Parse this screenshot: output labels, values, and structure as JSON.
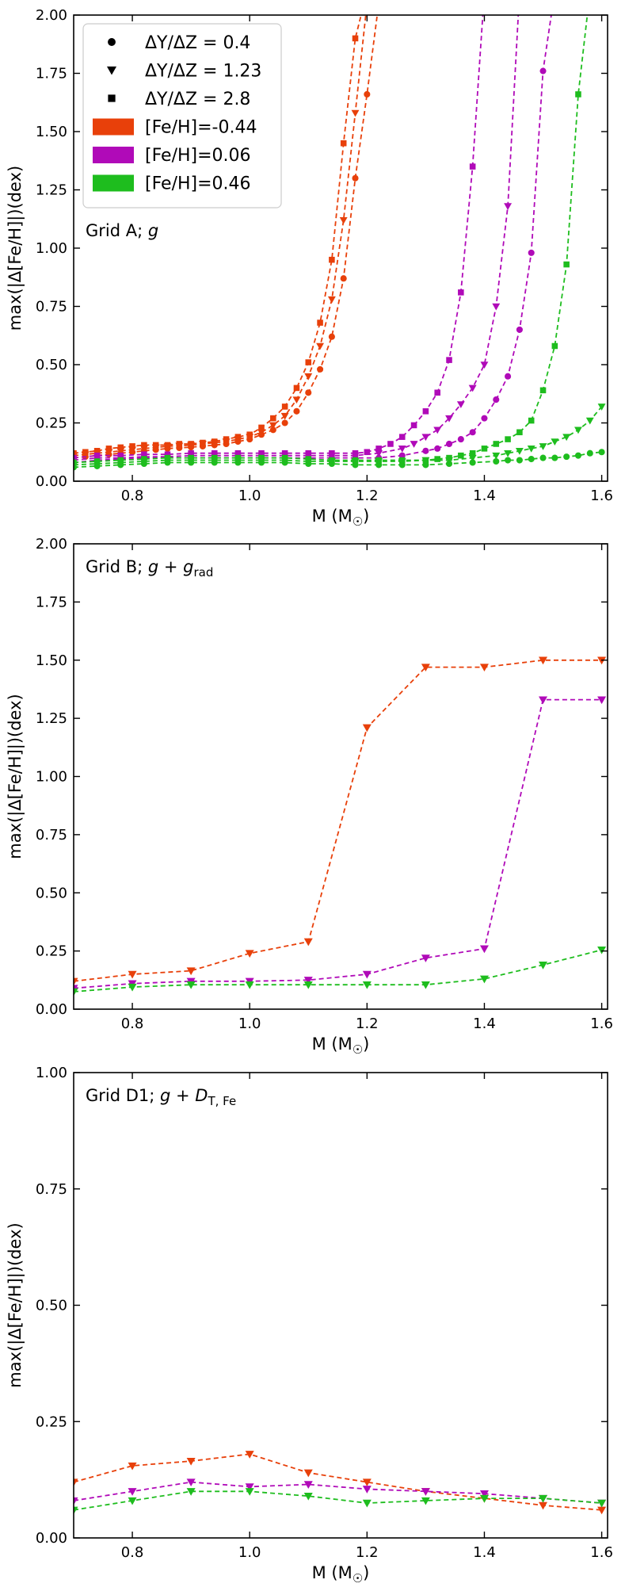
{
  "colors": {
    "metal_poor": "#e8400a",
    "solar": "#b00ab8",
    "metal_rich": "#1ebd1e",
    "axis": "#000000"
  },
  "chart_data": [
    {
      "type": "line",
      "title": "Grid A; g",
      "title_parts": {
        "prefix": "Grid A; ",
        "math": "g",
        "sub": ""
      },
      "xlabel": "M (M☉)",
      "xlabel_parts": {
        "main": "M (M",
        "sub": "☉",
        "close": ")"
      },
      "ylabel": "max(|Δ[Fe/H]|)(dex)",
      "xlim": [
        0.7,
        1.61
      ],
      "ylim": [
        0,
        2.0
      ],
      "xticks": [
        0.8,
        1.0,
        1.2,
        1.4,
        1.6
      ],
      "xtick_labels": [
        "0.8",
        "1.0",
        "1.2",
        "1.4",
        "1.6"
      ],
      "yticks": [
        0,
        0.25,
        0.5,
        0.75,
        1.0,
        1.25,
        1.5,
        1.75,
        2.0
      ],
      "ytick_labels": [
        "0.00",
        "0.25",
        "0.50",
        "0.75",
        "1.00",
        "1.25",
        "1.50",
        "1.75",
        "2.00"
      ],
      "legend": {
        "position": "top-left",
        "markers": [
          {
            "marker": "circle",
            "label": "ΔY/ΔZ = 0.4"
          },
          {
            "marker": "triangle-down",
            "label": "ΔY/ΔZ = 1.23"
          },
          {
            "marker": "square",
            "label": "ΔY/ΔZ = 2.8"
          }
        ],
        "colors": [
          {
            "color_key": "metal_poor",
            "label": "[Fe/H]=-0.44"
          },
          {
            "color_key": "solar",
            "label": "[Fe/H]=0.06"
          },
          {
            "color_key": "metal_rich",
            "label": "[Fe/H]=0.46"
          }
        ]
      },
      "series": [
        {
          "name": "[Fe/H]=-0.44, ΔY/ΔZ=0.4",
          "color_key": "metal_poor",
          "marker": "circle",
          "x": [
            0.7,
            0.72,
            0.74,
            0.76,
            0.78,
            0.8,
            0.82,
            0.84,
            0.86,
            0.88,
            0.9,
            0.92,
            0.94,
            0.96,
            0.98,
            1.0,
            1.02,
            1.04,
            1.06,
            1.08,
            1.1,
            1.12,
            1.14,
            1.16,
            1.18,
            1.2,
            1.22
          ],
          "values": [
            0.1,
            0.105,
            0.11,
            0.115,
            0.12,
            0.125,
            0.13,
            0.135,
            0.14,
            0.143,
            0.146,
            0.15,
            0.155,
            0.16,
            0.17,
            0.18,
            0.2,
            0.22,
            0.25,
            0.3,
            0.38,
            0.48,
            0.62,
            0.87,
            1.3,
            1.66,
            2.05
          ]
        },
        {
          "name": "[Fe/H]=-0.44, ΔY/ΔZ=1.23",
          "color_key": "metal_poor",
          "marker": "triangle-down",
          "x": [
            0.7,
            0.72,
            0.74,
            0.76,
            0.78,
            0.8,
            0.82,
            0.84,
            0.86,
            0.88,
            0.9,
            0.92,
            0.94,
            0.96,
            0.98,
            1.0,
            1.02,
            1.04,
            1.06,
            1.08,
            1.1,
            1.12,
            1.14,
            1.16,
            1.18,
            1.2
          ],
          "values": [
            0.11,
            0.115,
            0.12,
            0.125,
            0.13,
            0.135,
            0.14,
            0.145,
            0.15,
            0.152,
            0.155,
            0.16,
            0.165,
            0.17,
            0.18,
            0.19,
            0.21,
            0.24,
            0.28,
            0.35,
            0.45,
            0.58,
            0.78,
            1.12,
            1.58,
            2.05
          ]
        },
        {
          "name": "[Fe/H]=-0.44, ΔY/ΔZ=2.8",
          "color_key": "metal_poor",
          "marker": "square",
          "x": [
            0.7,
            0.72,
            0.74,
            0.76,
            0.78,
            0.8,
            0.82,
            0.84,
            0.86,
            0.88,
            0.9,
            0.92,
            0.94,
            0.96,
            0.98,
            1.0,
            1.02,
            1.04,
            1.06,
            1.08,
            1.1,
            1.12,
            1.14,
            1.16,
            1.18,
            1.2
          ],
          "values": [
            0.12,
            0.125,
            0.13,
            0.14,
            0.145,
            0.15,
            0.155,
            0.155,
            0.155,
            0.16,
            0.16,
            0.165,
            0.17,
            0.18,
            0.19,
            0.2,
            0.23,
            0.27,
            0.32,
            0.4,
            0.51,
            0.68,
            0.95,
            1.45,
            1.9,
            2.1
          ]
        },
        {
          "name": "[Fe/H]=0.06, ΔY/ΔZ=0.4",
          "color_key": "solar",
          "marker": "circle",
          "x": [
            0.7,
            0.74,
            0.78,
            0.82,
            0.86,
            0.9,
            0.94,
            0.98,
            1.02,
            1.06,
            1.1,
            1.14,
            1.18,
            1.22,
            1.26,
            1.3,
            1.32,
            1.34,
            1.36,
            1.38,
            1.4,
            1.42,
            1.44,
            1.46,
            1.48,
            1.5,
            1.52
          ],
          "values": [
            0.08,
            0.09,
            0.095,
            0.1,
            0.1,
            0.1,
            0.1,
            0.1,
            0.1,
            0.1,
            0.1,
            0.1,
            0.1,
            0.1,
            0.11,
            0.13,
            0.14,
            0.16,
            0.18,
            0.21,
            0.27,
            0.35,
            0.45,
            0.65,
            0.98,
            1.76,
            2.1
          ]
        },
        {
          "name": "[Fe/H]=0.06, ΔY/ΔZ=1.23",
          "color_key": "solar",
          "marker": "triangle-down",
          "x": [
            0.7,
            0.74,
            0.78,
            0.82,
            0.86,
            0.9,
            0.94,
            0.98,
            1.02,
            1.06,
            1.1,
            1.14,
            1.18,
            1.22,
            1.26,
            1.28,
            1.3,
            1.32,
            1.34,
            1.36,
            1.38,
            1.4,
            1.42,
            1.44,
            1.46
          ],
          "values": [
            0.09,
            0.1,
            0.1,
            0.105,
            0.105,
            0.11,
            0.11,
            0.11,
            0.11,
            0.11,
            0.11,
            0.11,
            0.11,
            0.12,
            0.14,
            0.16,
            0.19,
            0.22,
            0.27,
            0.33,
            0.4,
            0.5,
            0.75,
            1.18,
            2.1
          ]
        },
        {
          "name": "[Fe/H]=0.06, ΔY/ΔZ=2.8",
          "color_key": "solar",
          "marker": "square",
          "x": [
            0.7,
            0.74,
            0.78,
            0.82,
            0.86,
            0.9,
            0.94,
            0.98,
            1.02,
            1.06,
            1.1,
            1.14,
            1.18,
            1.2,
            1.22,
            1.24,
            1.26,
            1.28,
            1.3,
            1.32,
            1.34,
            1.36,
            1.38,
            1.4,
            1.42
          ],
          "values": [
            0.1,
            0.11,
            0.11,
            0.115,
            0.115,
            0.12,
            0.12,
            0.12,
            0.12,
            0.12,
            0.12,
            0.12,
            0.12,
            0.125,
            0.14,
            0.16,
            0.19,
            0.24,
            0.3,
            0.38,
            0.52,
            0.81,
            1.35,
            2.1,
            2.1
          ]
        },
        {
          "name": "[Fe/H]=0.46, ΔY/ΔZ=0.4",
          "color_key": "metal_rich",
          "marker": "circle",
          "x": [
            0.7,
            0.74,
            0.78,
            0.82,
            0.86,
            0.9,
            0.94,
            0.98,
            1.02,
            1.06,
            1.1,
            1.14,
            1.18,
            1.22,
            1.26,
            1.3,
            1.34,
            1.38,
            1.42,
            1.44,
            1.46,
            1.48,
            1.5,
            1.52,
            1.54,
            1.56,
            1.58,
            1.6
          ],
          "values": [
            0.06,
            0.065,
            0.07,
            0.075,
            0.08,
            0.08,
            0.08,
            0.08,
            0.08,
            0.08,
            0.075,
            0.075,
            0.07,
            0.07,
            0.07,
            0.07,
            0.075,
            0.08,
            0.085,
            0.09,
            0.09,
            0.095,
            0.1,
            0.1,
            0.105,
            0.11,
            0.12,
            0.125
          ]
        },
        {
          "name": "[Fe/H]=0.46, ΔY/ΔZ=1.23",
          "color_key": "metal_rich",
          "marker": "triangle-down",
          "x": [
            0.7,
            0.74,
            0.78,
            0.82,
            0.86,
            0.9,
            0.94,
            0.98,
            1.02,
            1.06,
            1.1,
            1.14,
            1.18,
            1.22,
            1.26,
            1.3,
            1.34,
            1.38,
            1.42,
            1.44,
            1.46,
            1.48,
            1.5,
            1.52,
            1.54,
            1.56,
            1.58,
            1.6
          ],
          "values": [
            0.07,
            0.075,
            0.08,
            0.085,
            0.09,
            0.09,
            0.09,
            0.09,
            0.09,
            0.09,
            0.085,
            0.085,
            0.085,
            0.085,
            0.085,
            0.09,
            0.09,
            0.1,
            0.11,
            0.12,
            0.13,
            0.14,
            0.15,
            0.17,
            0.19,
            0.22,
            0.26,
            0.32
          ]
        },
        {
          "name": "[Fe/H]=0.46, ΔY/ΔZ=2.8",
          "color_key": "metal_rich",
          "marker": "square",
          "x": [
            0.7,
            0.74,
            0.78,
            0.82,
            0.86,
            0.9,
            0.94,
            0.98,
            1.02,
            1.06,
            1.1,
            1.14,
            1.18,
            1.22,
            1.26,
            1.3,
            1.32,
            1.34,
            1.36,
            1.38,
            1.4,
            1.42,
            1.44,
            1.46,
            1.48,
            1.5,
            1.52,
            1.54,
            1.56,
            1.58
          ],
          "values": [
            0.08,
            0.085,
            0.09,
            0.095,
            0.1,
            0.1,
            0.1,
            0.1,
            0.1,
            0.1,
            0.095,
            0.09,
            0.09,
            0.09,
            0.09,
            0.09,
            0.095,
            0.1,
            0.11,
            0.12,
            0.14,
            0.16,
            0.18,
            0.21,
            0.26,
            0.39,
            0.58,
            0.93,
            1.66,
            2.1
          ]
        }
      ]
    },
    {
      "type": "line",
      "title": "Grid B; g + g_rad",
      "title_parts": {
        "prefix": "Grid B; ",
        "math": "g + g",
        "sub": "rad"
      },
      "xlabel": "M (M☉)",
      "xlabel_parts": {
        "main": "M (M",
        "sub": "☉",
        "close": ")"
      },
      "ylabel": "max(|Δ[Fe/H]|)(dex)",
      "xlim": [
        0.7,
        1.61
      ],
      "ylim": [
        0,
        2.0
      ],
      "xticks": [
        0.8,
        1.0,
        1.2,
        1.4,
        1.6
      ],
      "xtick_labels": [
        "0.8",
        "1.0",
        "1.2",
        "1.4",
        "1.6"
      ],
      "yticks": [
        0,
        0.25,
        0.5,
        0.75,
        1.0,
        1.25,
        1.5,
        1.75,
        2.0
      ],
      "ytick_labels": [
        "0.00",
        "0.25",
        "0.50",
        "0.75",
        "1.00",
        "1.25",
        "1.50",
        "1.75",
        "2.00"
      ],
      "series": [
        {
          "name": "[Fe/H]=-0.44",
          "color_key": "metal_poor",
          "marker": "triangle-down",
          "x": [
            0.7,
            0.8,
            0.9,
            1.0,
            1.1,
            1.2,
            1.3,
            1.4,
            1.5,
            1.6
          ],
          "values": [
            0.12,
            0.15,
            0.165,
            0.24,
            0.29,
            1.21,
            1.47,
            1.47,
            1.5,
            1.5
          ]
        },
        {
          "name": "[Fe/H]=0.06",
          "color_key": "solar",
          "marker": "triangle-down",
          "x": [
            0.7,
            0.8,
            0.9,
            1.0,
            1.1,
            1.2,
            1.3,
            1.4,
            1.5,
            1.6
          ],
          "values": [
            0.09,
            0.11,
            0.12,
            0.12,
            0.125,
            0.15,
            0.22,
            0.26,
            1.33,
            1.33
          ]
        },
        {
          "name": "[Fe/H]=0.46",
          "color_key": "metal_rich",
          "marker": "triangle-down",
          "x": [
            0.7,
            0.8,
            0.9,
            1.0,
            1.1,
            1.2,
            1.3,
            1.4,
            1.5,
            1.6
          ],
          "values": [
            0.075,
            0.095,
            0.105,
            0.105,
            0.105,
            0.105,
            0.105,
            0.13,
            0.19,
            0.255
          ]
        }
      ]
    },
    {
      "type": "line",
      "title": "Grid D1; g + D_T,Fe",
      "title_parts": {
        "prefix": "Grid D1; ",
        "math": "g + D",
        "sub": "T, Fe"
      },
      "xlabel": "M (M☉)",
      "xlabel_parts": {
        "main": "M (M",
        "sub": "☉",
        "close": ")"
      },
      "ylabel": "max(|Δ[Fe/H]|)(dex)",
      "xlim": [
        0.7,
        1.61
      ],
      "ylim": [
        0,
        1.0
      ],
      "xticks": [
        0.8,
        1.0,
        1.2,
        1.4,
        1.6
      ],
      "xtick_labels": [
        "0.8",
        "1.0",
        "1.2",
        "1.4",
        "1.6"
      ],
      "yticks": [
        0,
        0.25,
        0.5,
        0.75,
        1.0
      ],
      "ytick_labels": [
        "0.00",
        "0.25",
        "0.50",
        "0.75",
        "1.00"
      ],
      "series": [
        {
          "name": "[Fe/H]=-0.44",
          "color_key": "metal_poor",
          "marker": "triangle-down",
          "x": [
            0.7,
            0.8,
            0.9,
            1.0,
            1.1,
            1.2,
            1.3,
            1.4,
            1.5,
            1.6
          ],
          "values": [
            0.12,
            0.155,
            0.165,
            0.18,
            0.14,
            0.12,
            0.1,
            0.085,
            0.07,
            0.06
          ]
        },
        {
          "name": "[Fe/H]=0.06",
          "color_key": "solar",
          "marker": "triangle-down",
          "x": [
            0.7,
            0.8,
            0.9,
            1.0,
            1.1,
            1.2,
            1.3,
            1.4,
            1.5,
            1.6
          ],
          "values": [
            0.08,
            0.1,
            0.12,
            0.11,
            0.115,
            0.105,
            0.1,
            0.095,
            0.085,
            0.075
          ]
        },
        {
          "name": "[Fe/H]=0.46",
          "color_key": "metal_rich",
          "marker": "triangle-down",
          "x": [
            0.7,
            0.8,
            0.9,
            1.0,
            1.1,
            1.2,
            1.3,
            1.4,
            1.5,
            1.6
          ],
          "values": [
            0.06,
            0.08,
            0.1,
            0.1,
            0.09,
            0.075,
            0.08,
            0.085,
            0.085,
            0.075
          ]
        }
      ]
    }
  ]
}
